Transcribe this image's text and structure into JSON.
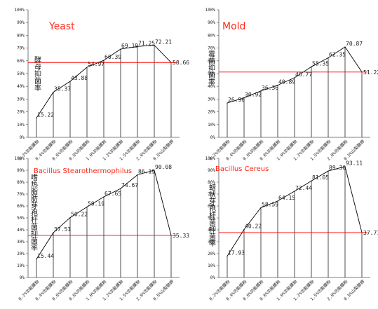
{
  "chart_data": [
    {
      "type": "area",
      "title": "Yeast",
      "ylabel": "酵母抑菌率",
      "categories": [
        "0.2%功能膜粉",
        "0.4%功能膜粉",
        "0.6%功能膜粉",
        "0.8%功能膜粉",
        "1.0%功能膜粉",
        "1.2%功能膜粉",
        "1.5%功能膜粉",
        "2.0%功能膜粉",
        "0.5%山梨酸钾"
      ],
      "values": [
        15.22,
        35.37,
        43.88,
        54.97,
        60.39,
        69.19,
        71.25,
        72.21,
        58.66
      ],
      "value_labels": [
        "15.22",
        "35.37",
        "43.88",
        "54.97",
        "60.39",
        "69.19",
        "71.25",
        "72.21",
        "58.66"
      ],
      "reference_line": 58.66,
      "ylim": [
        0,
        100
      ],
      "yticks": [
        "0%",
        "10%",
        "20%",
        "30%",
        "40%",
        "50%",
        "60%",
        "70%",
        "80%",
        "90%",
        "100%"
      ]
    },
    {
      "type": "area",
      "title": "Mold",
      "ylabel": "霉菌抑菌率",
      "categories": [
        "0.2%功能膜粉",
        "0.4%功能膜粉",
        "0.6%功能膜粉",
        "0.8%功能膜粉",
        "1.0%功能膜粉",
        "1.2%功能膜粉",
        "1.5%功能膜粉",
        "2.0%功能膜粉",
        "0.5%山梨酸钾"
      ],
      "values": [
        26.96,
        30.92,
        36.36,
        40.89,
        46.77,
        55.35,
        62.35,
        70.87,
        51.22
      ],
      "value_labels": [
        "26.96",
        "30.92",
        "36.36",
        "40.89",
        "46.77",
        "55.35",
        "62.35",
        "70.87",
        "51.22"
      ],
      "reference_line": 51.22,
      "ylim": [
        0,
        100
      ],
      "yticks": [
        "0%",
        "10%",
        "20%",
        "30%",
        "40%",
        "50%",
        "60%",
        "70%",
        "80%",
        "90%",
        "100%"
      ]
    },
    {
      "type": "area",
      "title": "Bacillus Stearothermophilus",
      "ylabel": "嗜热脂肪芽孢杆菌抑菌率",
      "categories": [
        "0.2%功能膜粉",
        "0.4%功能膜粉",
        "0.6%功能膜粉",
        "0.8%功能膜粉",
        "1.0%功能膜粉",
        "1.2%功能膜粉",
        "1.5%功能膜粉",
        "2.0%功能膜粉",
        "0.5%山梨酸钾"
      ],
      "values": [
        15.44,
        37.51,
        50.22,
        59.19,
        67.65,
        74.67,
        86.19,
        90.08,
        35.33
      ],
      "value_labels": [
        "15.44",
        "37.51",
        "50.22",
        "59.19",
        "67.65",
        "74.67",
        "86.19",
        "90.08",
        "35.33"
      ],
      "reference_line": 35.33,
      "ylim": [
        0,
        100
      ],
      "yticks": [
        "0%",
        "10%",
        "20%",
        "30%",
        "40%",
        "50%",
        "60%",
        "70%",
        "80%",
        "90%",
        "100%"
      ]
    },
    {
      "type": "area",
      "title": "Bacillus Cereus",
      "ylabel": "蜡状芽孢杆菌抑菌率",
      "categories": [
        "0.2%功能膜粉",
        "0.4%功能膜粉",
        "0.6%功能膜粉",
        "0.8%功能膜粉",
        "1.0%功能膜粉",
        "1.2%功能膜粉",
        "1.5%功能膜粉",
        "2.0%功能膜粉",
        "0.5%山梨酸钾"
      ],
      "values": [
        17.93,
        40.22,
        58.59,
        64.15,
        72.44,
        81.05,
        89.36,
        93.11,
        37.71
      ],
      "value_labels": [
        "17.93",
        "40.22",
        "58.59",
        "64.15",
        "72.44",
        "81.05",
        "89.36",
        "93.11",
        "37.71"
      ],
      "reference_line": 37.71,
      "ylim": [
        0,
        100
      ],
      "yticks": [
        "0%",
        "10%",
        "20%",
        "30%",
        "40%",
        "50%",
        "60%",
        "70%",
        "80%",
        "90%",
        "100%"
      ]
    }
  ],
  "colors": {
    "line": "#000000",
    "reference": "#ff0000",
    "title": "#ff2a1a",
    "axis": "#555555"
  }
}
